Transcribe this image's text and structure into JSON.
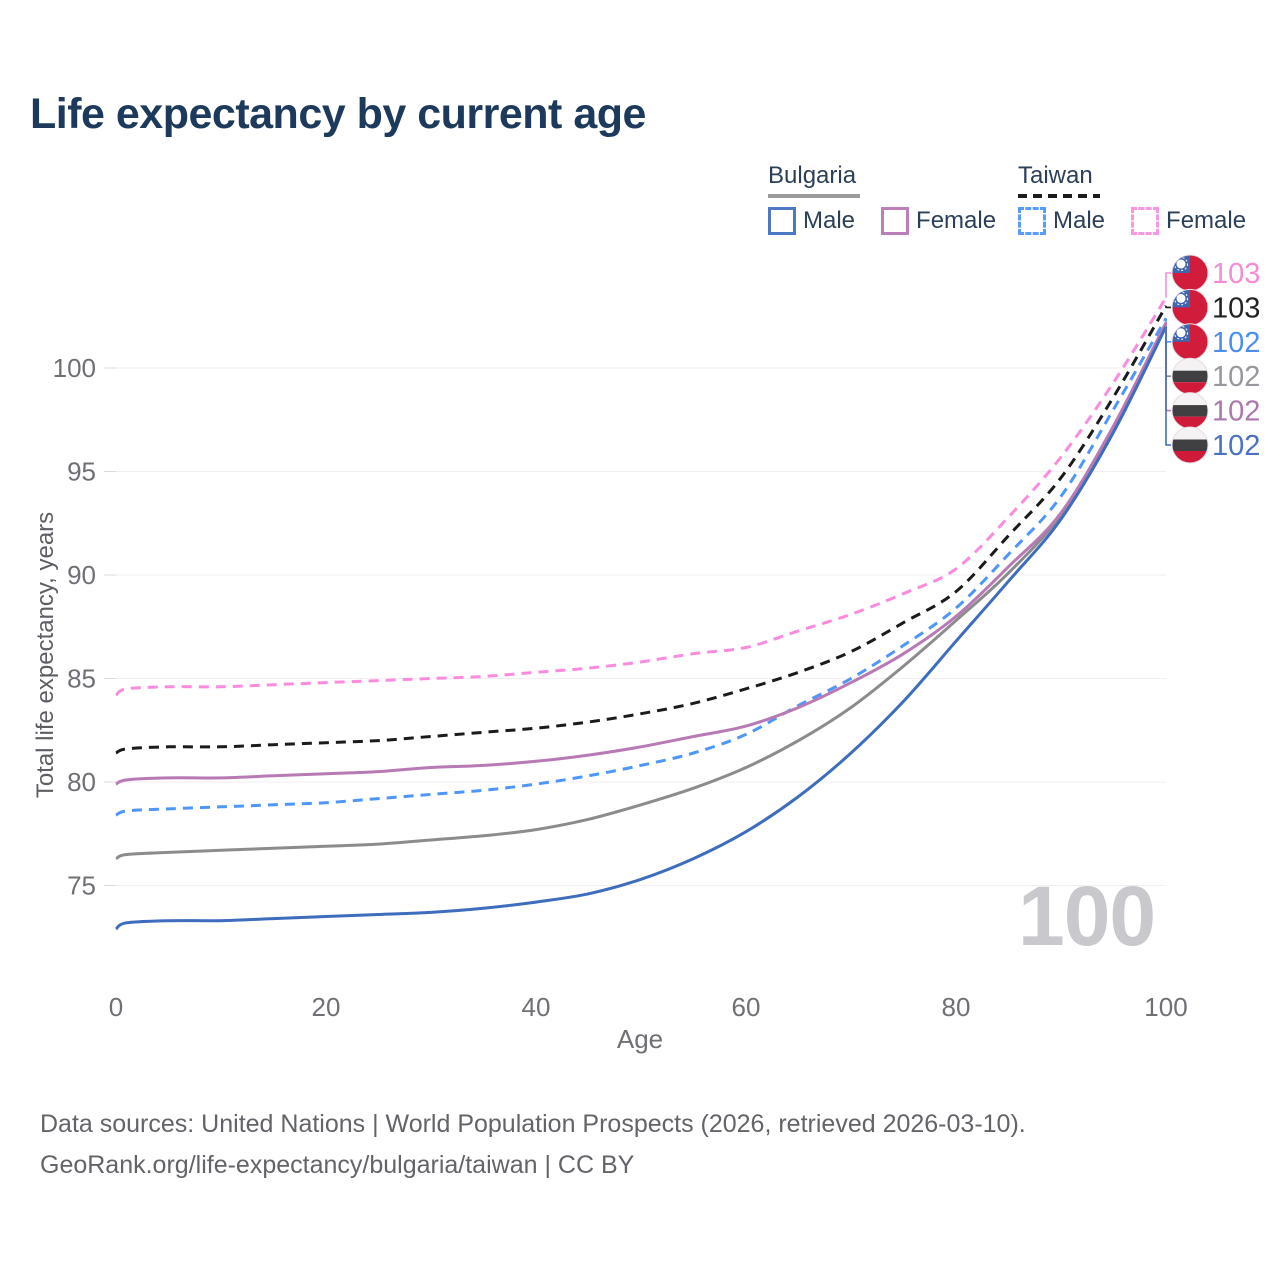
{
  "title": "Life expectancy by current age",
  "legend": {
    "groups": [
      {
        "id": "bulgaria",
        "label": "Bulgaria",
        "line_style": "solid",
        "line_color": "#9b9b9b",
        "items": [
          {
            "label": "Male",
            "swatch_color": "#4b79c3",
            "dashed": false
          },
          {
            "label": "Female",
            "swatch_color": "#bd7fba",
            "dashed": false
          }
        ]
      },
      {
        "id": "taiwan",
        "label": "Taiwan",
        "line_style": "dashed",
        "line_color": "#1b1b1b",
        "items": [
          {
            "label": "Male",
            "swatch_color": "#5a9bff",
            "dashed": true
          },
          {
            "label": "Female",
            "swatch_color": "#fb96e3",
            "dashed": true
          }
        ]
      }
    ]
  },
  "chart_data": {
    "type": "line",
    "title": "Life expectancy by current age",
    "xlabel": "Age",
    "ylabel": "Total life expectancy, years",
    "x_ticks": [
      0,
      20,
      40,
      60,
      80,
      100
    ],
    "y_ticks": [
      75,
      80,
      85,
      90,
      95,
      100
    ],
    "xlim": [
      0,
      100
    ],
    "ylim": [
      72.5,
      104
    ],
    "grid": "horizontal-only",
    "legend_position": "top-right",
    "ages": [
      0,
      1,
      5,
      10,
      15,
      20,
      25,
      30,
      35,
      40,
      45,
      50,
      55,
      60,
      65,
      70,
      75,
      80,
      85,
      90,
      95,
      100
    ],
    "series": [
      {
        "id": "taiwan-female",
        "country": "Taiwan",
        "sex": "Female",
        "line_style": "dashed",
        "color": "#fb8cdd",
        "label_color": "#f78bd7",
        "flag": "taiwan",
        "end_label": "103",
        "values": [
          84.2,
          84.5,
          84.6,
          84.6,
          84.7,
          84.8,
          84.9,
          85.0,
          85.1,
          85.3,
          85.5,
          85.8,
          86.2,
          86.5,
          87.3,
          88.1,
          89.1,
          90.3,
          92.8,
          95.7,
          99.3,
          103.4
        ]
      },
      {
        "id": "taiwan-total",
        "country": "Taiwan",
        "sex": "Both sexes",
        "line_style": "dashed",
        "color": "#1b1b1b",
        "label_color": "#222222",
        "flag": "taiwan",
        "end_label": "103",
        "values": [
          81.4,
          81.6,
          81.7,
          81.7,
          81.8,
          81.9,
          82.0,
          82.2,
          82.4,
          82.6,
          82.9,
          83.3,
          83.8,
          84.5,
          85.3,
          86.3,
          87.7,
          89.2,
          91.9,
          94.7,
          98.6,
          103.0
        ]
      },
      {
        "id": "taiwan-male",
        "country": "Taiwan",
        "sex": "Male",
        "line_style": "dashed",
        "color": "#4f96fa",
        "label_color": "#4d8df2",
        "flag": "taiwan",
        "end_label": "102",
        "values": [
          78.4,
          78.6,
          78.7,
          78.8,
          78.9,
          79.0,
          79.2,
          79.4,
          79.6,
          79.9,
          80.3,
          80.8,
          81.4,
          82.3,
          83.7,
          85.0,
          86.6,
          88.4,
          91.0,
          93.8,
          98.0,
          102.4
        ]
      },
      {
        "id": "bulgaria-total",
        "country": "Bulgaria",
        "sex": "Both sexes",
        "line_style": "solid",
        "color": "#8c8c8e",
        "label_color": "#97979d",
        "flag": "bulgaria",
        "end_label": "102",
        "values": [
          76.3,
          76.5,
          76.6,
          76.7,
          76.8,
          76.9,
          77.0,
          77.2,
          77.4,
          77.7,
          78.2,
          78.9,
          79.7,
          80.7,
          82.0,
          83.6,
          85.6,
          87.8,
          90.1,
          92.9,
          97.0,
          102.1
        ]
      },
      {
        "id": "bulgaria-female",
        "country": "Bulgaria",
        "sex": "Female",
        "line_style": "solid",
        "color": "#b77ab4",
        "label_color": "#ad77ad",
        "flag": "bulgaria",
        "end_label": "102",
        "values": [
          79.9,
          80.1,
          80.2,
          80.2,
          80.3,
          80.4,
          80.5,
          80.7,
          80.8,
          81.0,
          81.3,
          81.7,
          82.2,
          82.7,
          83.6,
          84.8,
          86.2,
          88.0,
          90.4,
          93.0,
          97.2,
          102.2
        ]
      },
      {
        "id": "bulgaria-male",
        "country": "Bulgaria",
        "sex": "Male",
        "line_style": "solid",
        "color": "#3e6dbd",
        "label_color": "#4a71c2",
        "flag": "bulgaria",
        "end_label": "102",
        "values": [
          72.9,
          73.2,
          73.3,
          73.3,
          73.4,
          73.5,
          73.6,
          73.7,
          73.9,
          74.2,
          74.6,
          75.3,
          76.3,
          77.6,
          79.3,
          81.4,
          83.9,
          86.8,
          89.7,
          92.7,
          96.9,
          102.0
        ]
      }
    ]
  },
  "age_cursor_value": "100",
  "footer": {
    "line1": "Data sources: United Nations | World Population Prospects (2026, retrieved 2026-03-10).",
    "line2": "GeoRank.org/life-expectancy/bulgaria/taiwan | CC BY"
  }
}
